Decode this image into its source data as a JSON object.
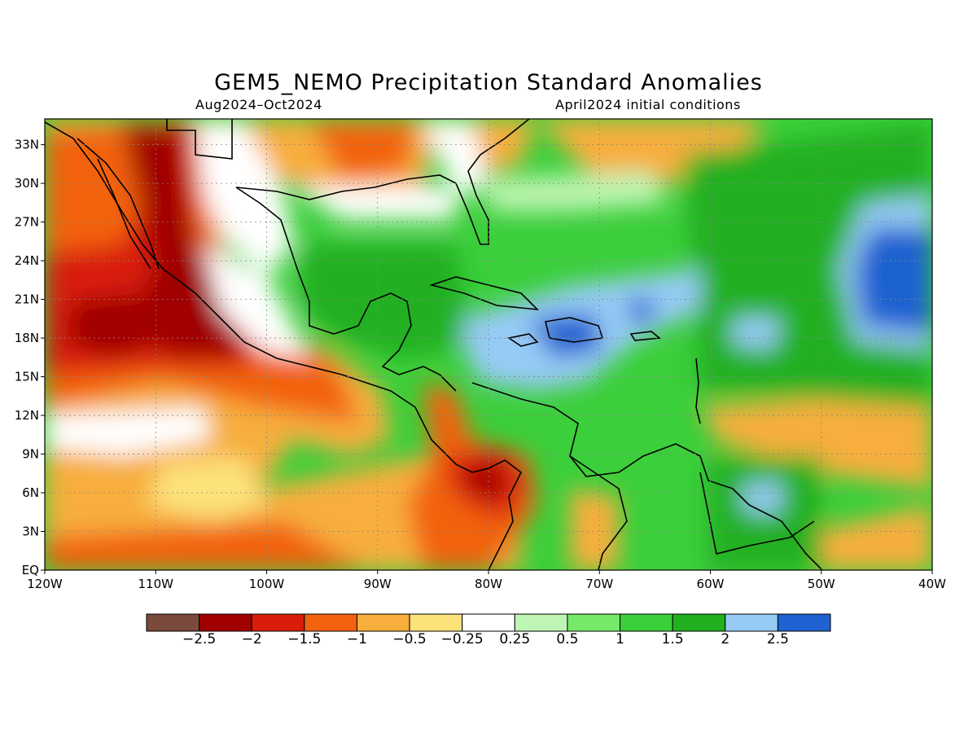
{
  "title": "GEM5_NEMO Precipitation Standard Anomalies",
  "subtitle_left": "Aug2024–Oct2024",
  "subtitle_right": "April2024 initial conditions",
  "axes": {
    "lon_ticks": [
      "120W",
      "110W",
      "100W",
      "90W",
      "80W",
      "70W",
      "60W",
      "50W",
      "40W"
    ],
    "lat_ticks": [
      "EQ",
      "3N",
      "6N",
      "9N",
      "12N",
      "15N",
      "18N",
      "21N",
      "24N",
      "27N",
      "30N",
      "33N"
    ]
  },
  "map": {
    "lon_range": [
      -120,
      -40
    ],
    "lat_range": [
      0,
      35
    ]
  },
  "colorbar": {
    "colors": [
      "#7a4a3c",
      "#a00000",
      "#d81e0a",
      "#f2620f",
      "#f7ae3c",
      "#fde27a",
      "#ffffff",
      "#bff5b4",
      "#76e86a",
      "#3bcf3b",
      "#20b020",
      "#96cbf5",
      "#1f62d1"
    ],
    "labels": [
      "−2.5",
      "−2",
      "−1.5",
      "−1",
      "−0.5",
      "−0.25",
      "0.25",
      "0.5",
      "1",
      "1.5",
      "2",
      "2.5"
    ]
  }
}
